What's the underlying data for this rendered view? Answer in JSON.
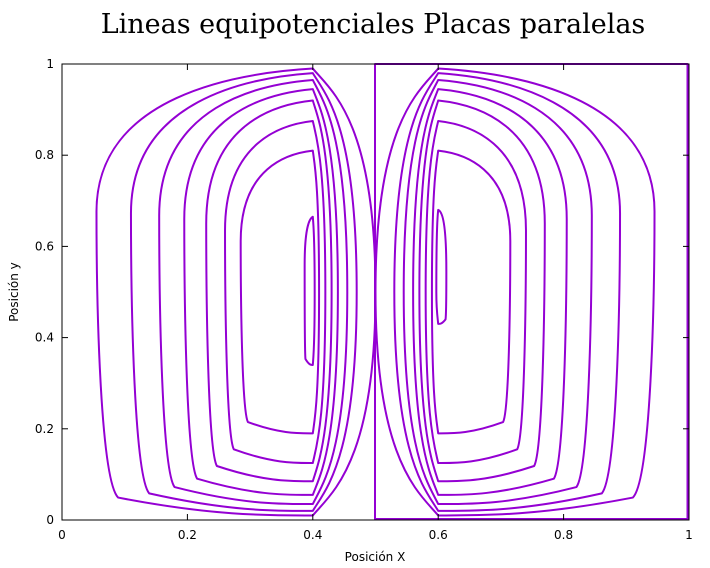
{
  "chart_data": {
    "type": "contour",
    "title": "Lineas equipotenciales Placas paralelas",
    "xlabel": "Posición X",
    "ylabel": "Posición y",
    "xlim": [
      0,
      1
    ],
    "ylim": [
      0,
      1
    ],
    "xticks": [
      "0",
      "0.2",
      "0.4",
      "0.6",
      "0.8",
      "1"
    ],
    "yticks": [
      "0",
      "0.2",
      "0.4",
      "0.6",
      "0.8",
      "1"
    ],
    "grid": false,
    "legend": "none",
    "line_color": "#9400d3",
    "plates": [
      {
        "x": 0.4,
        "y_range": [
          0.01,
          0.99
        ],
        "potential": "positive"
      },
      {
        "x": 0.6,
        "y_range": [
          0.01,
          0.99
        ],
        "potential": "negative"
      }
    ],
    "contours": [
      {
        "group": "left",
        "x_left": 0.055,
        "x_right": 0.5,
        "y_top": 0.99,
        "y_bottom": 0.01
      },
      {
        "group": "left",
        "x_left": 0.11,
        "x_right": 0.47,
        "y_top": 0.98,
        "y_bottom": 0.02
      },
      {
        "group": "left",
        "x_left": 0.155,
        "x_right": 0.455,
        "y_top": 0.965,
        "y_bottom": 0.035
      },
      {
        "group": "left",
        "x_left": 0.195,
        "x_right": 0.44,
        "y_top": 0.945,
        "y_bottom": 0.055
      },
      {
        "group": "left",
        "x_left": 0.23,
        "x_right": 0.43,
        "y_top": 0.92,
        "y_bottom": 0.085
      },
      {
        "group": "left",
        "x_left": 0.26,
        "x_right": 0.42,
        "y_top": 0.875,
        "y_bottom": 0.125
      },
      {
        "group": "left",
        "x_left": 0.285,
        "x_right": 0.41,
        "y_top": 0.81,
        "y_bottom": 0.19
      },
      {
        "group": "left",
        "x_left": 0.387,
        "x_right": 0.403,
        "y_top": 0.665,
        "y_bottom": 0.34
      },
      {
        "group": "right",
        "x_left": 0.5,
        "x_right": 0.945,
        "y_top": 0.99,
        "y_bottom": 0.01
      },
      {
        "group": "right",
        "x_left": 0.53,
        "x_right": 0.89,
        "y_top": 0.98,
        "y_bottom": 0.02
      },
      {
        "group": "right",
        "x_left": 0.545,
        "x_right": 0.845,
        "y_top": 0.965,
        "y_bottom": 0.035
      },
      {
        "group": "right",
        "x_left": 0.56,
        "x_right": 0.805,
        "y_top": 0.945,
        "y_bottom": 0.055
      },
      {
        "group": "right",
        "x_left": 0.57,
        "x_right": 0.77,
        "y_top": 0.92,
        "y_bottom": 0.085
      },
      {
        "group": "right",
        "x_left": 0.58,
        "x_right": 0.74,
        "y_top": 0.875,
        "y_bottom": 0.125
      },
      {
        "group": "right",
        "x_left": 0.59,
        "x_right": 0.715,
        "y_top": 0.81,
        "y_bottom": 0.19
      },
      {
        "group": "right",
        "x_left": 0.597,
        "x_right": 0.613,
        "y_top": 0.68,
        "y_bottom": 0.43
      }
    ],
    "boundary_contour": {
      "x_left": 0.5,
      "x_right": 1.0,
      "y_top": 1.0,
      "y_bottom": 0.0
    }
  }
}
